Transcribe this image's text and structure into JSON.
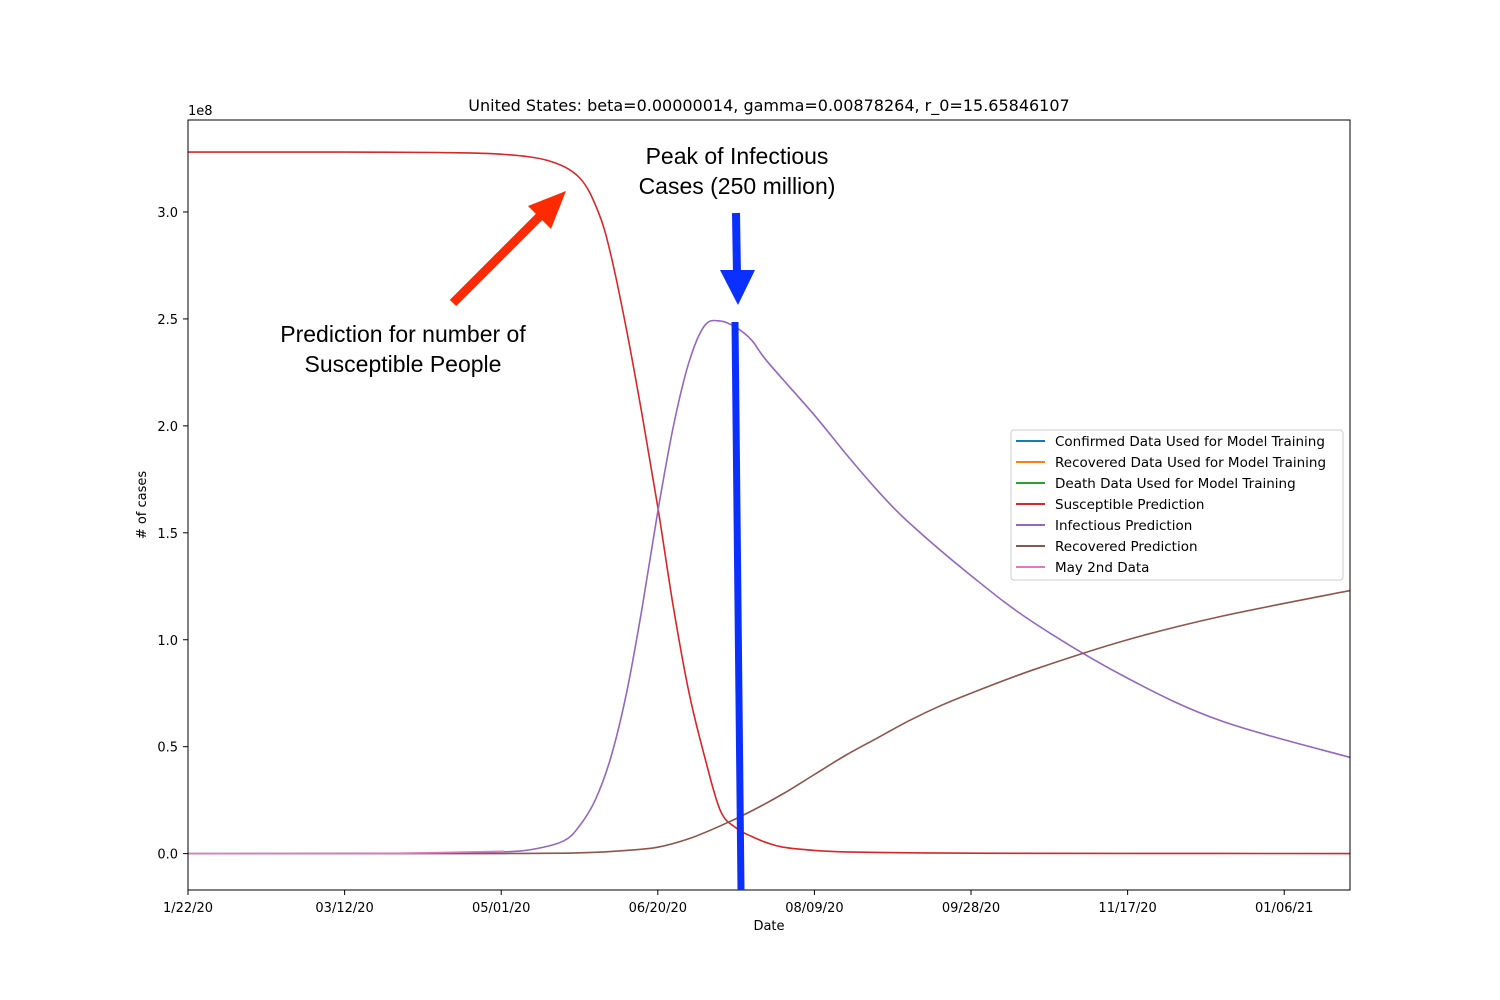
{
  "chart_data": {
    "type": "line",
    "title": "United States: beta=0.00000014, gamma=0.00878264, r_0=15.65846107",
    "xlabel": "Date",
    "ylabel": "# of cases",
    "y_multiplier": "1e8",
    "x_start": "1/22/20",
    "xlim": [
      "1/22/20",
      "01/27/21"
    ],
    "ylim": [
      -0.17,
      3.43
    ],
    "x_ticks": [
      {
        "date": "1/22/20",
        "label": "1/22/20"
      },
      {
        "date": "3/12/20",
        "label": "03/12/20"
      },
      {
        "date": "5/1/20",
        "label": "05/01/20"
      },
      {
        "date": "6/20/20",
        "label": "06/20/20"
      },
      {
        "date": "8/9/20",
        "label": "08/09/20"
      },
      {
        "date": "9/28/20",
        "label": "09/28/20"
      },
      {
        "date": "11/17/20",
        "label": "11/17/20"
      },
      {
        "date": "1/6/21",
        "label": "01/06/21"
      }
    ],
    "y_ticks": [
      0.0,
      0.5,
      1.0,
      1.5,
      2.0,
      2.5,
      3.0
    ],
    "y_tick_labels": [
      "0.0",
      "0.5",
      "1.0",
      "1.5",
      "2.0",
      "2.5",
      "3.0"
    ],
    "legend_position": "center-right",
    "grid": false,
    "series": [
      {
        "name": "Confirmed Data Used for Model Training",
        "color": "#1f77b4",
        "x": [],
        "y": []
      },
      {
        "name": "Recovered Data Used for Model Training",
        "color": "#ff7f0e",
        "x": [],
        "y": []
      },
      {
        "name": "Death Data Used for Model Training",
        "color": "#2ca02c",
        "x": [],
        "y": []
      },
      {
        "name": "Susceptible Prediction",
        "color": "#d62728",
        "x": [
          "1/22/20",
          "2/11/20",
          "3/12/20",
          "4/11/20",
          "5/1/20",
          "5/16/20",
          "5/26/20",
          "6/1/20",
          "6/5/20",
          "6/10/20",
          "6/15/20",
          "6/20/20",
          "6/25/20",
          "6/30/20",
          "7/5/20",
          "7/10/20",
          "7/15/20",
          "7/20/20",
          "7/25/20",
          "7/30/20",
          "8/9/20",
          "8/19/20",
          "9/8/20",
          "9/28/20",
          "11/17/20",
          "01/27/21"
        ],
        "y": [
          3.28,
          3.28,
          3.28,
          3.278,
          3.27,
          3.24,
          3.16,
          3.0,
          2.8,
          2.45,
          2.05,
          1.62,
          1.15,
          0.75,
          0.45,
          0.2,
          0.12,
          0.08,
          0.05,
          0.03,
          0.015,
          0.008,
          0.004,
          0.002,
          0.001,
          0.0005
        ]
      },
      {
        "name": "Infectious Prediction",
        "color": "#9467bd",
        "x": [
          "1/22/20",
          "3/12/20",
          "4/11/20",
          "5/1/20",
          "5/11/20",
          "5/21/20",
          "5/26/20",
          "5/31/20",
          "6/5/20",
          "6/10/20",
          "6/15/20",
          "6/20/20",
          "6/25/20",
          "6/30/20",
          "7/5/20",
          "7/10/20",
          "7/15/20",
          "7/20/20",
          "7/25/20",
          "8/9/20",
          "8/19/20",
          "8/29/20",
          "9/8/20",
          "9/28/20",
          "10/18/20",
          "11/17/20",
          "12/17/20",
          "01/27/21"
        ],
        "y": [
          0,
          0.001,
          0.003,
          0.008,
          0.02,
          0.06,
          0.13,
          0.25,
          0.45,
          0.75,
          1.15,
          1.6,
          2.0,
          2.3,
          2.47,
          2.49,
          2.46,
          2.4,
          2.3,
          2.05,
          1.87,
          1.7,
          1.55,
          1.3,
          1.08,
          0.82,
          0.62,
          0.45
        ]
      },
      {
        "name": "Recovered Prediction",
        "color": "#8c564b",
        "x": [
          "1/22/20",
          "4/11/20",
          "5/1/20",
          "5/21/20",
          "5/31/20",
          "6/10/20",
          "6/20/20",
          "6/30/20",
          "7/10/20",
          "7/20/20",
          "7/30/20",
          "8/9/20",
          "8/19/20",
          "8/29/20",
          "9/8/20",
          "9/18/20",
          "9/28/20",
          "10/18/20",
          "11/17/20",
          "12/17/20",
          "01/27/21"
        ],
        "y": [
          0,
          0.0002,
          0.0005,
          0.002,
          0.006,
          0.015,
          0.03,
          0.07,
          0.13,
          0.2,
          0.28,
          0.37,
          0.46,
          0.54,
          0.62,
          0.69,
          0.75,
          0.86,
          1.0,
          1.11,
          1.23
        ]
      },
      {
        "name": "May 2nd Data",
        "color": "#e377c2",
        "x": [
          "1/22/20",
          "3/12/20",
          "4/1/20",
          "4/21/20",
          "5/2/20"
        ],
        "y": [
          0,
          0.0001,
          0.002,
          0.008,
          0.011
        ]
      }
    ],
    "annotations": [
      {
        "text_lines": [
          "Peak of Infectious",
          "Cases (250 million)"
        ]
      },
      {
        "text_lines": [
          "Prediction for number of",
          "Susceptible People"
        ]
      }
    ]
  }
}
